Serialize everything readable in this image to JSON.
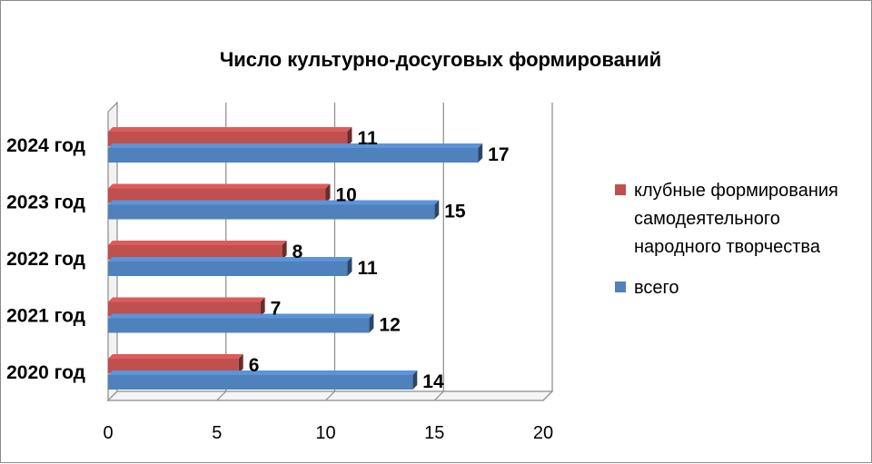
{
  "chart_data": {
    "type": "bar",
    "orientation": "horizontal",
    "title": "Число культурно-досуговых формирований",
    "categories": [
      "2020 год",
      "2021 год",
      "2022 год",
      "2023 год",
      "2024 год"
    ],
    "series": [
      {
        "name": "клубные формирования самодеятельного народного творчества",
        "name_lines": [
          "клубные формирования",
          "самодеятельного",
          "народного творчества"
        ],
        "color": "#c0504d",
        "values": [
          6,
          7,
          8,
          10,
          11
        ]
      },
      {
        "name": "всего",
        "name_lines": [
          "всего"
        ],
        "color": "#4f81bd",
        "values": [
          14,
          12,
          11,
          15,
          17
        ]
      }
    ],
    "xlim": [
      0,
      20
    ],
    "xticks": [
      0,
      5,
      10,
      15,
      20
    ],
    "grid": true,
    "legend_position": "right",
    "style": "3d"
  }
}
